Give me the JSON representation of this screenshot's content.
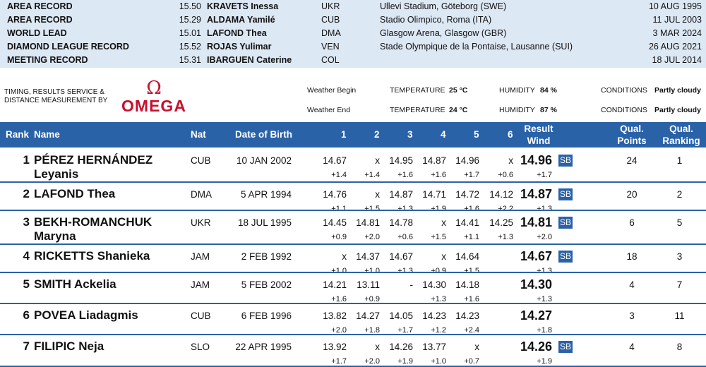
{
  "records": [
    {
      "label": "AREA RECORD",
      "mark": "15.50",
      "name": "KRAVETS Inessa",
      "nat": "UKR",
      "venue": "Ullevi Stadium, Göteborg (SWE)",
      "date": "10 AUG 1995"
    },
    {
      "label": "AREA RECORD",
      "mark": "15.29",
      "name": "ALDAMA Yamilé",
      "nat": "CUB",
      "venue": "Stadio Olimpico, Roma (ITA)",
      "date": "11 JUL 2003"
    },
    {
      "label": "WORLD LEAD",
      "mark": "15.01",
      "name": "LAFOND Thea",
      "nat": "DMA",
      "venue": "Glasgow Arena, Glasgow (GBR)",
      "date": "3 MAR 2024"
    },
    {
      "label": "DIAMOND LEAGUE RECORD",
      "mark": "15.52",
      "name": "ROJAS Yulimar",
      "nat": "VEN",
      "venue": "Stade Olympique de la Pontaise, Lausanne (SUI)",
      "date": "26 AUG 2021"
    },
    {
      "label": "MEETING RECORD",
      "mark": "15.31",
      "name": "IBARGUEN Caterine",
      "nat": "COL",
      "venue": "",
      "date": "18 JUL 2014"
    }
  ],
  "sponsor": {
    "timing_line1": "TIMING, RESULTS SERVICE &",
    "timing_line2": "DISTANCE MEASUREMENT BY",
    "logo_symbol": "Ω",
    "logo_word": "OMEGA"
  },
  "weather": [
    {
      "label": "Weather Begin",
      "temp_label": "TEMPERATURE",
      "temp": "25 °C",
      "hum_label": "HUMIDITY",
      "hum": "84 %",
      "cond_label": "CONDITIONS",
      "cond": "Partly cloudy"
    },
    {
      "label": "Weather End",
      "temp_label": "TEMPERATURE",
      "temp": "24 °C",
      "hum_label": "HUMIDITY",
      "hum": "87 %",
      "cond_label": "CONDITIONS",
      "cond": "Partly cloudy"
    }
  ],
  "header": {
    "rank": "Rank",
    "name": "Name",
    "nat": "Nat",
    "dob": "Date of Birth",
    "attempts": [
      "1",
      "2",
      "3",
      "4",
      "5",
      "6"
    ],
    "result": "Result",
    "wind": "Wind",
    "qual_points_1": "Qual.",
    "qual_points_2": "Points",
    "qual_ranking_1": "Qual.",
    "qual_ranking_2": "Ranking"
  },
  "colors": {
    "header_bg": "#2a62a8",
    "records_bg": "#dde8f5",
    "omega_red": "#c8102e"
  },
  "athletes": [
    {
      "rank": "1",
      "name_line1": "PÉREZ HERNÁNDEZ",
      "name_line2": "Leyanis",
      "nat": "CUB",
      "dob": "10 JAN 2002",
      "attempts": [
        "14.67",
        "x",
        "14.95",
        "14.87",
        "14.96",
        "x"
      ],
      "winds": [
        "+1.4",
        "+1.4",
        "+1.6",
        "+1.6",
        "+1.7",
        "+0.6"
      ],
      "result": "14.96",
      "result_wind": "+1.7",
      "badge": "SB",
      "qual_points": "24",
      "qual_ranking": "1"
    },
    {
      "rank": "2",
      "name_line1": "LAFOND Thea",
      "name_line2": "",
      "nat": "DMA",
      "dob": "5 APR 1994",
      "attempts": [
        "14.76",
        "x",
        "14.87",
        "14.71",
        "14.72",
        "14.12"
      ],
      "winds": [
        "+1.1",
        "+1.5",
        "+1.3",
        "+1.9",
        "+1.6",
        "+2.2"
      ],
      "result": "14.87",
      "result_wind": "+1.3",
      "badge": "SB",
      "qual_points": "20",
      "qual_ranking": "2"
    },
    {
      "rank": "3",
      "name_line1": "BEKH-ROMANCHUK",
      "name_line2": "Maryna",
      "nat": "UKR",
      "dob": "18 JUL 1995",
      "attempts": [
        "14.45",
        "14.81",
        "14.78",
        "x",
        "14.41",
        "14.25"
      ],
      "winds": [
        "+0.9",
        "+2.0",
        "+0.6",
        "+1.5",
        "+1.1",
        "+1.3"
      ],
      "result": "14.81",
      "result_wind": "+2.0",
      "badge": "SB",
      "qual_points": "6",
      "qual_ranking": "5"
    },
    {
      "rank": "4",
      "name_line1": "RICKETTS Shanieka",
      "name_line2": "",
      "nat": "JAM",
      "dob": "2 FEB 1992",
      "attempts": [
        "x",
        "14.37",
        "14.67",
        "x",
        "14.64",
        ""
      ],
      "winds": [
        "+1.0",
        "+1.0",
        "+1.3",
        "+0.9",
        "+1.5",
        ""
      ],
      "result": "14.67",
      "result_wind": "+1.3",
      "badge": "SB",
      "qual_points": "18",
      "qual_ranking": "3"
    },
    {
      "rank": "5",
      "name_line1": "SMITH Ackelia",
      "name_line2": "",
      "nat": "JAM",
      "dob": "5 FEB 2002",
      "attempts": [
        "14.21",
        "13.11",
        "-",
        "14.30",
        "14.18",
        ""
      ],
      "winds": [
        "+1.6",
        "+0.9",
        "",
        "+1.3",
        "+1.6",
        ""
      ],
      "result": "14.30",
      "result_wind": "+1.3",
      "badge": "",
      "qual_points": "4",
      "qual_ranking": "7"
    },
    {
      "rank": "6",
      "name_line1": "POVEA Liadagmis",
      "name_line2": "",
      "nat": "CUB",
      "dob": "6 FEB 1996",
      "attempts": [
        "13.82",
        "14.27",
        "14.05",
        "14.23",
        "14.23",
        ""
      ],
      "winds": [
        "+2.0",
        "+1.8",
        "+1.7",
        "+1.2",
        "+2.4",
        ""
      ],
      "result": "14.27",
      "result_wind": "+1.8",
      "badge": "",
      "qual_points": "3",
      "qual_ranking": "11"
    },
    {
      "rank": "7",
      "name_line1": "FILIPIC Neja",
      "name_line2": "",
      "nat": "SLO",
      "dob": "22 APR 1995",
      "attempts": [
        "13.92",
        "x",
        "14.26",
        "13.77",
        "x",
        ""
      ],
      "winds": [
        "+1.7",
        "+2.0",
        "+1.9",
        "+1.0",
        "+0.7",
        ""
      ],
      "result": "14.26",
      "result_wind": "+1.9",
      "badge": "SB",
      "qual_points": "4",
      "qual_ranking": "8"
    }
  ]
}
